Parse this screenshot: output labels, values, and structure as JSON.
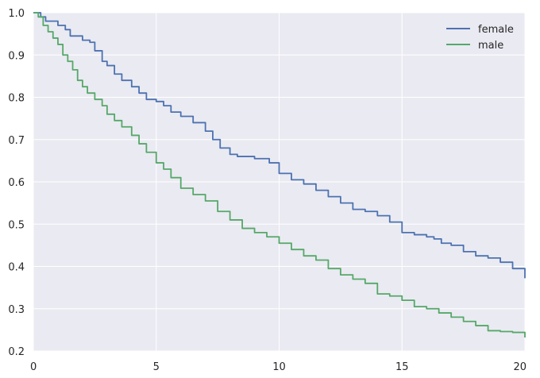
{
  "chart_data": {
    "type": "line",
    "title": "",
    "xlabel": "",
    "ylabel": "",
    "xlim": [
      0,
      20
    ],
    "ylim": [
      0.2,
      1.0
    ],
    "x_ticks": [
      "0",
      "5",
      "10",
      "15",
      "20"
    ],
    "y_ticks": [
      "0.2",
      "0.3",
      "0.4",
      "0.5",
      "0.6",
      "0.7",
      "0.8",
      "0.9",
      "1.0"
    ],
    "grid": true,
    "legend_position": "top-right",
    "background_color": "#eaeaf2",
    "grid_color": "#ffffff",
    "series": [
      {
        "name": "female",
        "color": "#4c72b0",
        "step": true,
        "x": [
          0,
          0.3,
          0.5,
          1.0,
          1.3,
          1.5,
          2.0,
          2.3,
          2.5,
          2.8,
          3.0,
          3.3,
          3.6,
          4.0,
          4.3,
          4.6,
          5.0,
          5.3,
          5.6,
          6.0,
          6.5,
          7.0,
          7.3,
          7.6,
          8.0,
          8.3,
          9.0,
          9.6,
          10.0,
          10.5,
          11.0,
          11.5,
          12.0,
          12.5,
          13.0,
          13.5,
          14.0,
          14.5,
          15.0,
          15.5,
          16.0,
          16.3,
          16.6,
          17.0,
          17.5,
          18.0,
          18.5,
          19.0,
          19.5,
          20.0
        ],
        "y": [
          1.0,
          0.99,
          0.98,
          0.97,
          0.96,
          0.945,
          0.935,
          0.93,
          0.91,
          0.885,
          0.875,
          0.855,
          0.84,
          0.825,
          0.81,
          0.795,
          0.79,
          0.78,
          0.765,
          0.755,
          0.74,
          0.72,
          0.7,
          0.68,
          0.665,
          0.66,
          0.655,
          0.645,
          0.62,
          0.605,
          0.595,
          0.58,
          0.565,
          0.55,
          0.535,
          0.53,
          0.52,
          0.505,
          0.48,
          0.475,
          0.47,
          0.465,
          0.455,
          0.45,
          0.435,
          0.425,
          0.42,
          0.41,
          0.395,
          0.372
        ]
      },
      {
        "name": "male",
        "color": "#55a868",
        "step": true,
        "x": [
          0,
          0.2,
          0.4,
          0.6,
          0.8,
          1.0,
          1.2,
          1.4,
          1.6,
          1.8,
          2.0,
          2.2,
          2.5,
          2.8,
          3.0,
          3.3,
          3.6,
          4.0,
          4.3,
          4.6,
          5.0,
          5.3,
          5.6,
          6.0,
          6.5,
          7.0,
          7.5,
          8.0,
          8.5,
          9.0,
          9.5,
          10.0,
          10.5,
          11.0,
          11.5,
          12.0,
          12.5,
          13.0,
          13.5,
          14.0,
          14.5,
          15.0,
          15.5,
          16.0,
          16.5,
          17.0,
          17.5,
          18.0,
          18.5,
          19.0,
          19.5,
          20.0
        ],
        "y": [
          1.0,
          0.99,
          0.97,
          0.955,
          0.94,
          0.925,
          0.9,
          0.885,
          0.865,
          0.84,
          0.825,
          0.81,
          0.795,
          0.78,
          0.76,
          0.745,
          0.73,
          0.71,
          0.69,
          0.67,
          0.645,
          0.63,
          0.61,
          0.585,
          0.57,
          0.555,
          0.53,
          0.51,
          0.49,
          0.48,
          0.47,
          0.455,
          0.44,
          0.425,
          0.415,
          0.395,
          0.38,
          0.37,
          0.36,
          0.335,
          0.33,
          0.32,
          0.305,
          0.3,
          0.29,
          0.28,
          0.27,
          0.26,
          0.248,
          0.246,
          0.244,
          0.232
        ]
      }
    ]
  }
}
